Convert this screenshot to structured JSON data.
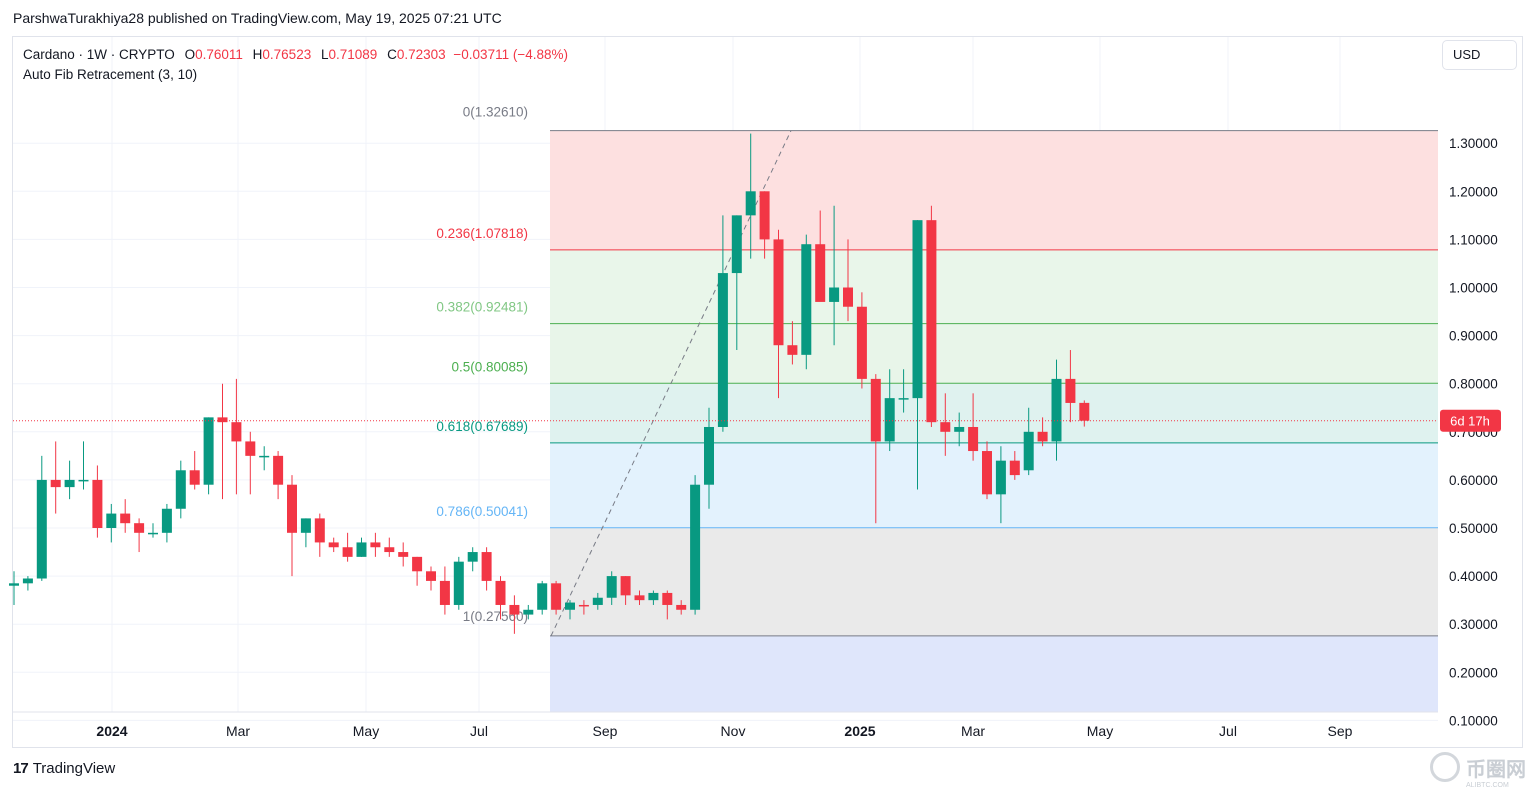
{
  "header": {
    "published_line": "ParshwaTurakhiya28 published on TradingView.com, May 19, 2025 07:21 UTC"
  },
  "legend": {
    "symbol": "Cardano · 1W · CRYPTO",
    "open_label": "O",
    "open": "0.76011",
    "high_label": "H",
    "high": "0.76523",
    "low_label": "L",
    "low": "0.71089",
    "close_label": "C",
    "close": "0.72303",
    "change": "−0.03711 (−4.88%)",
    "indicator": "Auto Fib Retracement (3, 10)"
  },
  "currency_button": "USD",
  "countdown_label": "6d 17h",
  "footer": {
    "brand": "TradingView"
  },
  "watermark": {
    "text": "币圈网",
    "sub": "ALIBTC.COM"
  },
  "colors": {
    "up": "#089981",
    "down": "#f23645",
    "grid": "#f0f3fa",
    "fib_red": "#f23645",
    "fib_green": "#4caf50",
    "fib_teal": "#089981",
    "fib_blue": "#64b5f6",
    "fib_gray": "#787b86"
  },
  "chart_data": {
    "type": "candlestick",
    "symbol": "Cardano",
    "interval": "1W",
    "y_axis": {
      "ticks": [
        "1.30000",
        "1.20000",
        "1.10000",
        "1.00000",
        "0.90000",
        "0.80000",
        "0.70000",
        "0.60000",
        "0.50000",
        "0.40000",
        "0.30000",
        "0.20000",
        "0.10000"
      ],
      "range": [
        0.0,
        1.38
      ]
    },
    "x_axis_labels": [
      "2024",
      "Mar",
      "May",
      "Jul",
      "Sep",
      "Nov",
      "2025",
      "Mar",
      "May",
      "Jul",
      "Sep"
    ],
    "current_price_line": 0.72303,
    "fib_levels": [
      {
        "label": "0(1.32610)",
        "ratio": 0,
        "price": 1.3261
      },
      {
        "label": "0.236(1.07818)",
        "ratio": 0.236,
        "price": 1.07818
      },
      {
        "label": "0.382(0.92481)",
        "ratio": 0.382,
        "price": 0.92481
      },
      {
        "label": "0.5(0.80085)",
        "ratio": 0.5,
        "price": 0.80085
      },
      {
        "label": "0.618(0.67689)",
        "ratio": 0.618,
        "price": 0.67689
      },
      {
        "label": "0.786(0.50041)",
        "ratio": 0.786,
        "price": 0.50041
      },
      {
        "label": "1(0.27560)",
        "ratio": 1,
        "price": 0.2756
      }
    ],
    "candles": [
      {
        "o": 0.38,
        "h": 0.41,
        "l": 0.34,
        "c": 0.385
      },
      {
        "o": 0.385,
        "h": 0.4,
        "l": 0.37,
        "c": 0.395
      },
      {
        "o": 0.395,
        "h": 0.65,
        "l": 0.39,
        "c": 0.6
      },
      {
        "o": 0.6,
        "h": 0.68,
        "l": 0.53,
        "c": 0.585
      },
      {
        "o": 0.585,
        "h": 0.64,
        "l": 0.56,
        "c": 0.6
      },
      {
        "o": 0.6,
        "h": 0.68,
        "l": 0.58,
        "c": 0.6
      },
      {
        "o": 0.6,
        "h": 0.63,
        "l": 0.48,
        "c": 0.5
      },
      {
        "o": 0.5,
        "h": 0.55,
        "l": 0.47,
        "c": 0.53
      },
      {
        "o": 0.53,
        "h": 0.56,
        "l": 0.49,
        "c": 0.51
      },
      {
        "o": 0.51,
        "h": 0.52,
        "l": 0.45,
        "c": 0.49
      },
      {
        "o": 0.49,
        "h": 0.51,
        "l": 0.48,
        "c": 0.49
      },
      {
        "o": 0.49,
        "h": 0.55,
        "l": 0.47,
        "c": 0.54
      },
      {
        "o": 0.54,
        "h": 0.64,
        "l": 0.52,
        "c": 0.62
      },
      {
        "o": 0.62,
        "h": 0.66,
        "l": 0.58,
        "c": 0.59
      },
      {
        "o": 0.59,
        "h": 0.73,
        "l": 0.57,
        "c": 0.73
      },
      {
        "o": 0.73,
        "h": 0.8,
        "l": 0.56,
        "c": 0.72
      },
      {
        "o": 0.72,
        "h": 0.81,
        "l": 0.57,
        "c": 0.68
      },
      {
        "o": 0.68,
        "h": 0.7,
        "l": 0.57,
        "c": 0.65
      },
      {
        "o": 0.65,
        "h": 0.67,
        "l": 0.62,
        "c": 0.65
      },
      {
        "o": 0.65,
        "h": 0.66,
        "l": 0.56,
        "c": 0.59
      },
      {
        "o": 0.59,
        "h": 0.61,
        "l": 0.4,
        "c": 0.49
      },
      {
        "o": 0.49,
        "h": 0.52,
        "l": 0.46,
        "c": 0.52
      },
      {
        "o": 0.52,
        "h": 0.53,
        "l": 0.44,
        "c": 0.47
      },
      {
        "o": 0.47,
        "h": 0.48,
        "l": 0.45,
        "c": 0.46
      },
      {
        "o": 0.46,
        "h": 0.49,
        "l": 0.43,
        "c": 0.44
      },
      {
        "o": 0.44,
        "h": 0.48,
        "l": 0.44,
        "c": 0.47
      },
      {
        "o": 0.47,
        "h": 0.49,
        "l": 0.44,
        "c": 0.46
      },
      {
        "o": 0.46,
        "h": 0.48,
        "l": 0.44,
        "c": 0.45
      },
      {
        "o": 0.45,
        "h": 0.47,
        "l": 0.42,
        "c": 0.44
      },
      {
        "o": 0.44,
        "h": 0.44,
        "l": 0.38,
        "c": 0.41
      },
      {
        "o": 0.41,
        "h": 0.42,
        "l": 0.37,
        "c": 0.39
      },
      {
        "o": 0.39,
        "h": 0.42,
        "l": 0.32,
        "c": 0.34
      },
      {
        "o": 0.34,
        "h": 0.44,
        "l": 0.33,
        "c": 0.43
      },
      {
        "o": 0.43,
        "h": 0.46,
        "l": 0.41,
        "c": 0.45
      },
      {
        "o": 0.45,
        "h": 0.46,
        "l": 0.37,
        "c": 0.39
      },
      {
        "o": 0.39,
        "h": 0.4,
        "l": 0.31,
        "c": 0.34
      },
      {
        "o": 0.34,
        "h": 0.36,
        "l": 0.28,
        "c": 0.32
      },
      {
        "o": 0.32,
        "h": 0.34,
        "l": 0.31,
        "c": 0.33
      },
      {
        "o": 0.33,
        "h": 0.39,
        "l": 0.32,
        "c": 0.385
      },
      {
        "o": 0.385,
        "h": 0.39,
        "l": 0.32,
        "c": 0.33
      },
      {
        "o": 0.33,
        "h": 0.35,
        "l": 0.31,
        "c": 0.345
      },
      {
        "o": 0.34,
        "h": 0.35,
        "l": 0.32,
        "c": 0.338
      },
      {
        "o": 0.34,
        "h": 0.365,
        "l": 0.33,
        "c": 0.355
      },
      {
        "o": 0.355,
        "h": 0.41,
        "l": 0.34,
        "c": 0.4
      },
      {
        "o": 0.4,
        "h": 0.4,
        "l": 0.34,
        "c": 0.36
      },
      {
        "o": 0.36,
        "h": 0.37,
        "l": 0.34,
        "c": 0.35
      },
      {
        "o": 0.35,
        "h": 0.37,
        "l": 0.34,
        "c": 0.365
      },
      {
        "o": 0.365,
        "h": 0.37,
        "l": 0.31,
        "c": 0.34
      },
      {
        "o": 0.34,
        "h": 0.35,
        "l": 0.32,
        "c": 0.33
      },
      {
        "o": 0.33,
        "h": 0.61,
        "l": 0.32,
        "c": 0.59
      },
      {
        "o": 0.59,
        "h": 0.75,
        "l": 0.54,
        "c": 0.71
      },
      {
        "o": 0.71,
        "h": 1.15,
        "l": 0.7,
        "c": 1.03
      },
      {
        "o": 1.03,
        "h": 1.15,
        "l": 0.87,
        "c": 1.15
      },
      {
        "o": 1.15,
        "h": 1.32,
        "l": 1.06,
        "c": 1.2
      },
      {
        "o": 1.2,
        "h": 1.2,
        "l": 1.06,
        "c": 1.1
      },
      {
        "o": 1.1,
        "h": 1.12,
        "l": 0.77,
        "c": 0.88
      },
      {
        "o": 0.88,
        "h": 0.93,
        "l": 0.84,
        "c": 0.86
      },
      {
        "o": 0.86,
        "h": 1.11,
        "l": 0.83,
        "c": 1.09
      },
      {
        "o": 1.09,
        "h": 1.16,
        "l": 0.98,
        "c": 0.97
      },
      {
        "o": 0.97,
        "h": 1.17,
        "l": 0.88,
        "c": 1.0
      },
      {
        "o": 1.0,
        "h": 1.1,
        "l": 0.93,
        "c": 0.96
      },
      {
        "o": 0.96,
        "h": 0.99,
        "l": 0.79,
        "c": 0.81
      },
      {
        "o": 0.81,
        "h": 0.82,
        "l": 0.51,
        "c": 0.68
      },
      {
        "o": 0.68,
        "h": 0.83,
        "l": 0.66,
        "c": 0.77
      },
      {
        "o": 0.77,
        "h": 0.83,
        "l": 0.74,
        "c": 0.77
      },
      {
        "o": 0.77,
        "h": 1.14,
        "l": 0.58,
        "c": 1.14
      },
      {
        "o": 1.14,
        "h": 1.17,
        "l": 0.71,
        "c": 0.72
      },
      {
        "o": 0.72,
        "h": 0.78,
        "l": 0.65,
        "c": 0.7
      },
      {
        "o": 0.7,
        "h": 0.74,
        "l": 0.67,
        "c": 0.71
      },
      {
        "o": 0.71,
        "h": 0.78,
        "l": 0.64,
        "c": 0.66
      },
      {
        "o": 0.66,
        "h": 0.68,
        "l": 0.56,
        "c": 0.57
      },
      {
        "o": 0.57,
        "h": 0.67,
        "l": 0.51,
        "c": 0.64
      },
      {
        "o": 0.64,
        "h": 0.66,
        "l": 0.6,
        "c": 0.61
      },
      {
        "o": 0.62,
        "h": 0.75,
        "l": 0.61,
        "c": 0.7
      },
      {
        "o": 0.7,
        "h": 0.73,
        "l": 0.67,
        "c": 0.68
      },
      {
        "o": 0.68,
        "h": 0.85,
        "l": 0.64,
        "c": 0.81
      },
      {
        "o": 0.81,
        "h": 0.87,
        "l": 0.72,
        "c": 0.76
      },
      {
        "o": 0.76011,
        "h": 0.76523,
        "l": 0.71089,
        "c": 0.72303
      }
    ]
  }
}
